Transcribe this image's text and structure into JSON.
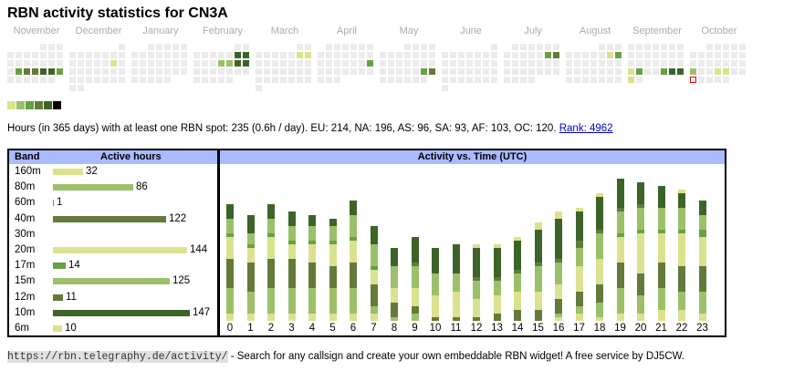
{
  "title": "RBN activity statistics for CN3A",
  "palette": [
    "#dbe28e",
    "#9cc06a",
    "#68a045",
    "#647a3a",
    "#3c6428",
    "#000000"
  ],
  "empty_color": "#ebebeb",
  "today_outline_color": "#e00000",
  "calendar": {
    "months": [
      {
        "name": "November",
        "start_col": 4,
        "days": 30,
        "active": [
          {
            "day": 19,
            "level": 2
          },
          {
            "day": 20,
            "level": 3
          },
          {
            "day": 21,
            "level": 3
          },
          {
            "day": 22,
            "level": 4
          },
          {
            "day": 23,
            "level": 4
          },
          {
            "day": 24,
            "level": 2
          }
        ]
      },
      {
        "name": "December",
        "start_col": 6,
        "days": 31,
        "active": [
          {
            "day": 14,
            "level": 0
          }
        ]
      },
      {
        "name": "January",
        "start_col": 2,
        "days": 31,
        "active": []
      },
      {
        "name": "February",
        "start_col": 5,
        "days": 28,
        "active": [
          {
            "day": 8,
            "level": 4
          },
          {
            "day": 9,
            "level": 4
          },
          {
            "day": 13,
            "level": 1
          },
          {
            "day": 14,
            "level": 1
          },
          {
            "day": 15,
            "level": 4
          },
          {
            "day": 16,
            "level": 4
          }
        ]
      },
      {
        "name": "March",
        "start_col": 5,
        "days": 31,
        "active": [
          {
            "day": 8,
            "level": 0
          },
          {
            "day": 9,
            "level": 0
          }
        ]
      },
      {
        "name": "April",
        "start_col": 1,
        "days": 30,
        "active": [
          {
            "day": 20,
            "level": 2
          }
        ]
      },
      {
        "name": "May",
        "start_col": 3,
        "days": 31,
        "active": [
          {
            "day": 24,
            "level": 2
          },
          {
            "day": 25,
            "level": 3
          }
        ]
      },
      {
        "name": "June",
        "start_col": 6,
        "days": 30,
        "active": []
      },
      {
        "name": "July",
        "start_col": 1,
        "days": 31,
        "active": [
          {
            "day": 12,
            "level": 2
          },
          {
            "day": 13,
            "level": 3
          }
        ]
      },
      {
        "name": "August",
        "start_col": 4,
        "days": 31,
        "active": [
          {
            "day": 9,
            "level": 0
          },
          {
            "day": 10,
            "level": 2
          }
        ]
      },
      {
        "name": "September",
        "start_col": 0,
        "days": 30,
        "active": [
          {
            "day": 22,
            "level": 0
          },
          {
            "day": 23,
            "level": 2
          },
          {
            "day": 26,
            "level": 2
          },
          {
            "day": 27,
            "level": 4
          },
          {
            "day": 28,
            "level": 4
          },
          {
            "day": 29,
            "level": 0
          }
        ]
      },
      {
        "name": "October",
        "start_col": 2,
        "days": 31,
        "visible_days": 31,
        "today": 27,
        "active": [
          {
            "day": 20,
            "level": 1
          },
          {
            "day": 23,
            "level": 0
          },
          {
            "day": 24,
            "level": 0
          }
        ]
      }
    ]
  },
  "summary": {
    "text": "Hours (in 365 days) with at least one RBN spot: 235 (0.6h / day). EU: 214, NA: 196, AS: 96, SA: 93, AF: 103, OC: 120.",
    "rank_link": "Rank: 4962"
  },
  "bands_table": {
    "header_band": "Band",
    "header_hours": "Active hours",
    "rows": [
      {
        "band": "160m",
        "hours": 32,
        "color_index": 0
      },
      {
        "band": "80m",
        "hours": 86,
        "color_index": 1
      },
      {
        "band": "60m",
        "hours": 1,
        "color_index": 2
      },
      {
        "band": "40m",
        "hours": 122,
        "color_index": 3
      },
      {
        "band": "30m",
        "hours": null,
        "color_index": 4
      },
      {
        "band": "20m",
        "hours": 144,
        "color_index": 0
      },
      {
        "band": "17m",
        "hours": 14,
        "color_index": 2
      },
      {
        "band": "15m",
        "hours": 125,
        "color_index": 1
      },
      {
        "band": "12m",
        "hours": 11,
        "color_index": 3
      },
      {
        "band": "10m",
        "hours": 147,
        "color_index": 4
      },
      {
        "band": "6m",
        "hours": 10,
        "color_index": 0
      }
    ]
  },
  "chart_data": {
    "type": "bar",
    "stacked": true,
    "title": "Activity vs. Time (UTC)",
    "xlabel": "",
    "ylabel": "",
    "categories": [
      "0",
      "1",
      "2",
      "3",
      "4",
      "5",
      "6",
      "7",
      "8",
      "9",
      "10",
      "11",
      "12",
      "13",
      "14",
      "15",
      "16",
      "17",
      "18",
      "19",
      "20",
      "21",
      "22",
      "23"
    ],
    "series": [
      {
        "name": "160m",
        "color_index": 0,
        "values": [
          2,
          2,
          2,
          2,
          2,
          2,
          2,
          2,
          0,
          0,
          0,
          0,
          0,
          0,
          0,
          0,
          1,
          2,
          1,
          2,
          2,
          3,
          3,
          2
        ]
      },
      {
        "name": "80m",
        "color_index": 1,
        "values": [
          7,
          6,
          7,
          7,
          7,
          7,
          7,
          2,
          1,
          2,
          0,
          0,
          0,
          0,
          0,
          0,
          1,
          2,
          4,
          7,
          5,
          6,
          5,
          6
        ]
      },
      {
        "name": "60m",
        "color_index": 2,
        "values": [
          0,
          0,
          0,
          0,
          0,
          0,
          0,
          0,
          0,
          0,
          0,
          0,
          0,
          0,
          0,
          0,
          0,
          0,
          0,
          0,
          0,
          0,
          0,
          0
        ]
      },
      {
        "name": "40m",
        "color_index": 3,
        "values": [
          8,
          8,
          8,
          8,
          7,
          6,
          7,
          6,
          4,
          2,
          1,
          1,
          1,
          2,
          3,
          3,
          4,
          4,
          5,
          7,
          6,
          7,
          7,
          7
        ]
      },
      {
        "name": "30m",
        "color_index": 4,
        "values": [
          0,
          0,
          0,
          0,
          0,
          0,
          0,
          0,
          0,
          0,
          0,
          0,
          0,
          0,
          0,
          0,
          0,
          0,
          0,
          0,
          0,
          0,
          0,
          0
        ]
      },
      {
        "name": "20m",
        "color_index": 0,
        "values": [
          6,
          4,
          6,
          4,
          5,
          6,
          6,
          4,
          4,
          5,
          6,
          7,
          5,
          5,
          5,
          5,
          4,
          7,
          7,
          7,
          11,
          8,
          9,
          8
        ]
      },
      {
        "name": "17m",
        "color_index": 2,
        "values": [
          1,
          1,
          1,
          1,
          1,
          1,
          1,
          1,
          0,
          0,
          0,
          0,
          0,
          0,
          0,
          0,
          0,
          0,
          0,
          1,
          1,
          1,
          1,
          2
        ]
      },
      {
        "name": "15m",
        "color_index": 1,
        "values": [
          4,
          3,
          4,
          4,
          4,
          4,
          6,
          6,
          6,
          6,
          6,
          5,
          5,
          4,
          5,
          7,
          6,
          5,
          7,
          6,
          6,
          6,
          6,
          4
        ]
      },
      {
        "name": "12m",
        "color_index": 3,
        "values": [
          0,
          0,
          0,
          0,
          0,
          0,
          0,
          0,
          0,
          1,
          0,
          0,
          1,
          1,
          1,
          1,
          1,
          2,
          1,
          1,
          1,
          0,
          0,
          0
        ]
      },
      {
        "name": "10m",
        "color_index": 4,
        "values": [
          4,
          5,
          4,
          4,
          3,
          2,
          4,
          5,
          5,
          7,
          7,
          8,
          8,
          8,
          8,
          9,
          11,
          8,
          9,
          8,
          6,
          6,
          4,
          4
        ]
      },
      {
        "name": "6m",
        "color_index": 0,
        "values": [
          0,
          0,
          0,
          0,
          0,
          0,
          0,
          0,
          0,
          0,
          0,
          0,
          1,
          1,
          1,
          2,
          2,
          1,
          1,
          0,
          0,
          0,
          1,
          0
        ]
      }
    ]
  },
  "footer": {
    "url": "https://rbn.telegraphy.de/activity/",
    "text": " - Search for any callsign and create your own embeddable RBN widget! A free service by DJ5CW."
  }
}
